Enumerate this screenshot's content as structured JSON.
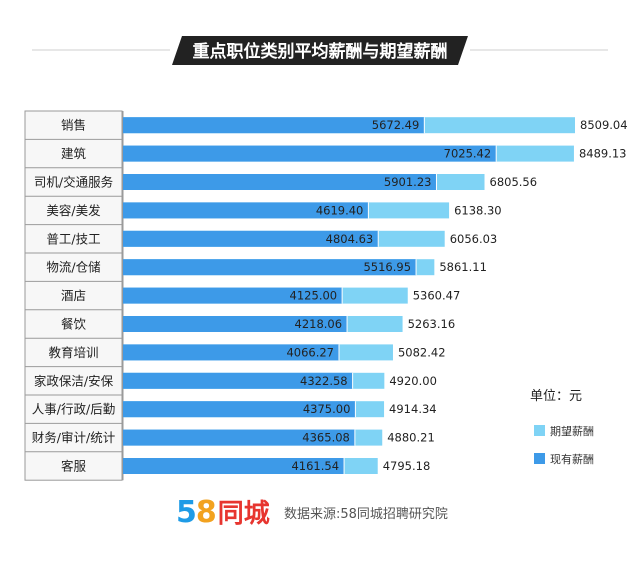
{
  "chart_data": {
    "type": "bar",
    "orientation": "horizontal",
    "title": "重点职位类别平均薪酬与期望薪酬",
    "unit_label": "单位：元",
    "categories": [
      "销售",
      "建筑",
      "司机/交通服务",
      "美容/美发",
      "普工/技工",
      "物流/仓储",
      "酒店",
      "餐饮",
      "教育培训",
      "家政保洁/安保",
      "人事/行政/后勤",
      "财务/审计/统计",
      "客服"
    ],
    "series": [
      {
        "name": "期望薪酬",
        "color": "#7fd3f5",
        "values": [
          8509.04,
          8489.13,
          6805.56,
          6138.3,
          6056.03,
          5861.11,
          5360.47,
          5263.16,
          5082.42,
          4920.0,
          4914.34,
          4880.21,
          4795.18
        ],
        "labels": [
          "8509.04",
          "8489.13",
          "6805.56",
          "6138.30",
          "6056.03",
          "5861.11",
          "5360.47",
          "5263.16",
          "5082.42",
          "4920.00",
          "4914.34",
          "4880.21",
          "4795.18"
        ]
      },
      {
        "name": "现有薪酬",
        "color": "#3d9ae8",
        "values": [
          5672.49,
          7025.42,
          5901.23,
          4619.4,
          4804.63,
          5516.95,
          4125.0,
          4218.06,
          4066.27,
          4322.58,
          4375.0,
          4365.08,
          4161.54
        ],
        "labels": [
          "5672.49",
          "7025.42",
          "5901.23",
          "4619.40",
          "4804.63",
          "5516.95",
          "4125.00",
          "4218.06",
          "4066.27",
          "4322.58",
          "4375.00",
          "4365.08",
          "4161.54"
        ]
      }
    ],
    "xlim": [
      0,
      8509.04
    ],
    "grid": false,
    "legend_position": "right"
  },
  "footer": {
    "brand_digit_5": "5",
    "brand_digit_8": "8",
    "brand_name": "同城",
    "source": "数据来源:58同城招聘研究院"
  }
}
